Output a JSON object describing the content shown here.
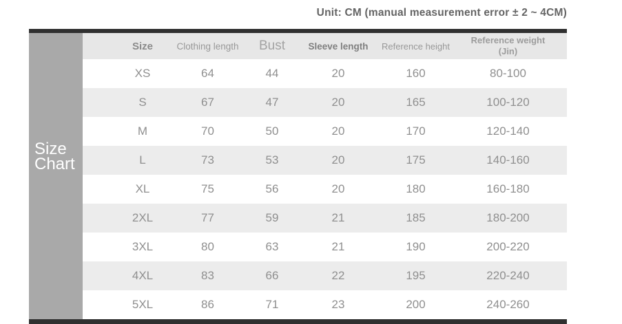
{
  "header_note": "Unit: CM (manual measurement error ± 2 ~ 4CM)",
  "sidebar": {
    "line1": "Size",
    "line2": "Chart"
  },
  "table_ui": {
    "columns": [
      {
        "label": "Size"
      },
      {
        "label": "Clothing length"
      },
      {
        "label": "Bust"
      },
      {
        "label": "Sleeve length"
      },
      {
        "label": "Reference height"
      },
      {
        "label": "Reference weight",
        "sublabel": "(Jin)"
      }
    ]
  },
  "chart_data": {
    "type": "table",
    "title": "Size Chart",
    "unit_note": "Unit: CM (manual measurement error ± 2 ~ 4CM)",
    "columns": [
      "Size",
      "Clothing length",
      "Bust",
      "Sleeve length",
      "Reference height",
      "Reference weight (Jin)"
    ],
    "rows": [
      [
        "XS",
        "64",
        "44",
        "20",
        "160",
        "80-100"
      ],
      [
        "S",
        "67",
        "47",
        "20",
        "165",
        "100-120"
      ],
      [
        "M",
        "70",
        "50",
        "20",
        "170",
        "120-140"
      ],
      [
        "L",
        "73",
        "53",
        "20",
        "175",
        "140-160"
      ],
      [
        "XL",
        "75",
        "56",
        "20",
        "180",
        "160-180"
      ],
      [
        "2XL",
        "77",
        "59",
        "21",
        "185",
        "180-200"
      ],
      [
        "3XL",
        "80",
        "63",
        "21",
        "190",
        "200-220"
      ],
      [
        "4XL",
        "83",
        "66",
        "22",
        "195",
        "220-240"
      ],
      [
        "5XL",
        "86",
        "71",
        "23",
        "200",
        "240-260"
      ]
    ]
  },
  "colors": {
    "bar": "#303030",
    "sidebar_bg": "#a9a9a9",
    "header_bg": "#e7e7e7",
    "row_alt_bg": "#ececec",
    "text": "#8f8f8f",
    "title_text": "#646464"
  }
}
